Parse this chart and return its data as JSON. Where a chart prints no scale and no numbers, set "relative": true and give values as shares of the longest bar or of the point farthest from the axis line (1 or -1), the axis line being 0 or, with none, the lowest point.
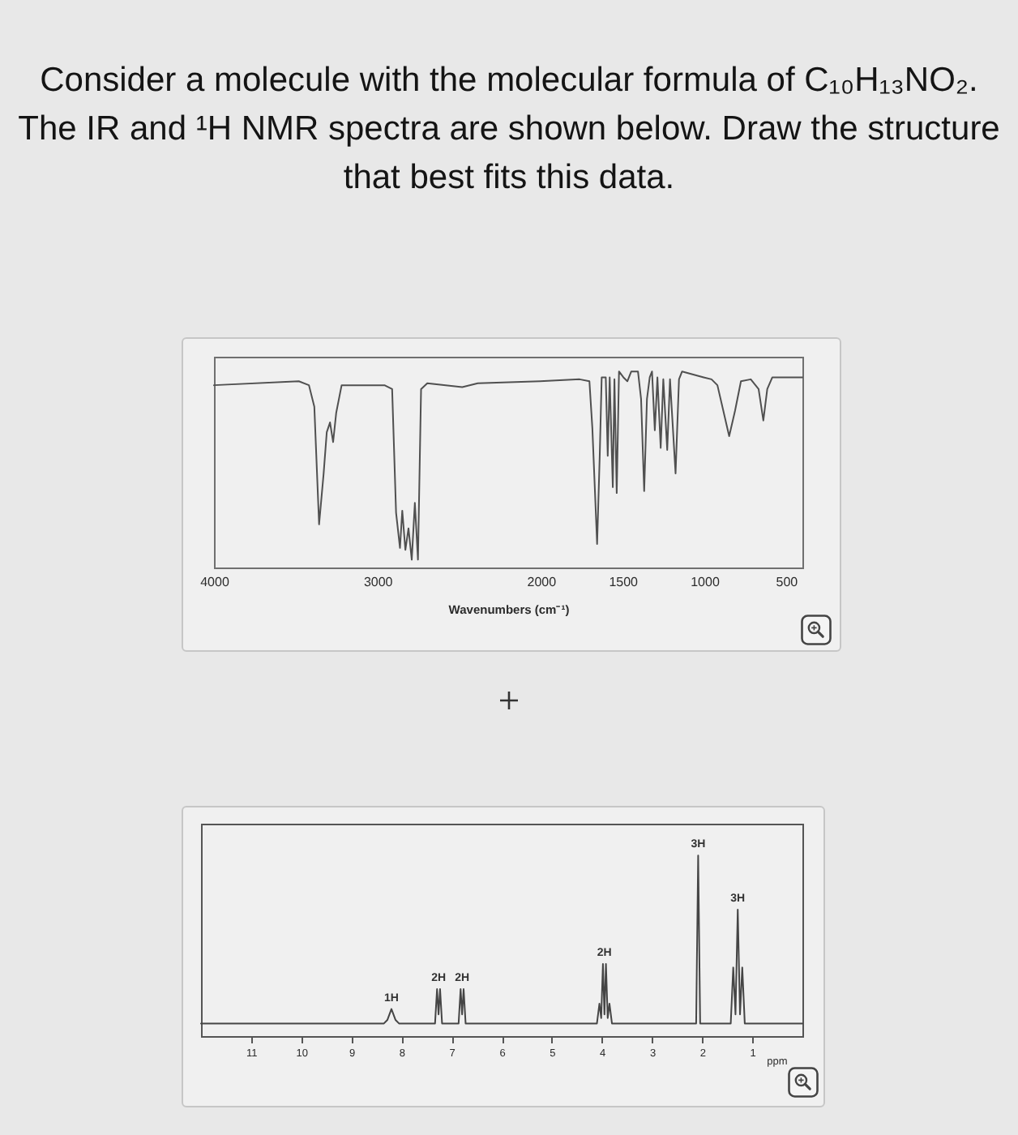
{
  "chart_data": [
    {
      "type": "line",
      "title": "Consider a molecule with the molecular formula of C₁₀H₁₃NO₂. The IR and ¹H NMR spectra are shown below. Draw the structure that best fits this data.",
      "xlabel": "Wavenumbers (cm⁻¹)",
      "relative": true,
      "xlim": [
        4000,
        400
      ],
      "xticks": [
        4000,
        3000,
        2000,
        1500,
        1000,
        500
      ],
      "x": [
        4000,
        3481,
        3419,
        3386,
        3357,
        3329,
        3310,
        3290,
        3271,
        3252,
        3219,
        2957,
        2910,
        2886,
        2862,
        2848,
        2829,
        2810,
        2790,
        2771,
        2752,
        2733,
        2695,
        2481,
        2386,
        2005,
        1763,
        1703,
        1685,
        1656,
        1640,
        1628,
        1603,
        1591,
        1579,
        1560,
        1550,
        1536,
        1522,
        1495,
        1471,
        1447,
        1406,
        1387,
        1368,
        1351,
        1334,
        1320,
        1303,
        1287,
        1267,
        1251,
        1227,
        1210,
        1176,
        1155,
        1136,
        1004,
        956,
        920,
        884,
        848,
        812,
        776,
        716,
        668,
        639,
        615,
        584,
        400
      ],
      "series": [
        {
          "color": "#505050",
          "values": [
            0.93,
            0.95,
            0.93,
            0.82,
            0.22,
            0.48,
            0.69,
            0.74,
            0.64,
            0.79,
            0.93,
            0.93,
            0.91,
            0.28,
            0.1,
            0.29,
            0.09,
            0.2,
            0.04,
            0.33,
            0.04,
            0.91,
            0.94,
            0.92,
            0.94,
            0.95,
            0.96,
            0.95,
            0.71,
            0.12,
            0.57,
            0.97,
            0.97,
            0.57,
            0.97,
            0.41,
            0.96,
            0.38,
            1,
            0.97,
            0.95,
            1,
            1,
            0.86,
            0.39,
            0.86,
            0.97,
            1,
            0.7,
            0.97,
            0.61,
            0.96,
            0.6,
            0.96,
            0.48,
            0.96,
            1,
            0.97,
            0.96,
            0.93,
            0.8,
            0.67,
            0.8,
            0.95,
            0.96,
            0.91,
            0.75,
            0.91,
            0.97,
            0.97
          ]
        }
      ]
    },
    {
      "type": "line",
      "xlabel": "ppm",
      "relative": true,
      "xlim": [
        12,
        0
      ],
      "xticks": [
        11,
        10,
        9,
        8,
        7,
        6,
        5,
        4,
        3,
        2,
        1
      ],
      "x": [
        12,
        8.35,
        8.28,
        8.2,
        8.12,
        8.05,
        7.33,
        7.29,
        7.26,
        7.23,
        7.19,
        6.86,
        6.82,
        6.79,
        6.76,
        6.72,
        4.1,
        4.05,
        4.015,
        3.98,
        3.95,
        3.92,
        3.885,
        3.85,
        3.8,
        2.12,
        2.08,
        2.04,
        1.43,
        1.38,
        1.335,
        1.29,
        1.245,
        1.2,
        1.15,
        0
      ],
      "series": [
        {
          "color": "#454545",
          "values": [
            0.07,
            0.07,
            0.09,
            0.15,
            0.09,
            0.07,
            0.07,
            0.26,
            0.12,
            0.26,
            0.07,
            0.07,
            0.26,
            0.12,
            0.26,
            0.07,
            0.07,
            0.18,
            0.1,
            0.4,
            0.12,
            0.4,
            0.1,
            0.18,
            0.07,
            0.07,
            1,
            0.07,
            0.07,
            0.38,
            0.12,
            0.7,
            0.12,
            0.38,
            0.07,
            0.07
          ]
        }
      ],
      "annotations": [
        {
          "text": "1H",
          "x": 8.2,
          "y": 0.15
        },
        {
          "text": "2H",
          "x": 7.26,
          "y": 0.26
        },
        {
          "text": "2H",
          "x": 6.79,
          "y": 0.26
        },
        {
          "text": "2H",
          "x": 3.95,
          "y": 0.4
        },
        {
          "text": "3H",
          "x": 2.08,
          "y": 1
        },
        {
          "text": "3H",
          "x": 1.29,
          "y": 0.7
        }
      ]
    }
  ]
}
